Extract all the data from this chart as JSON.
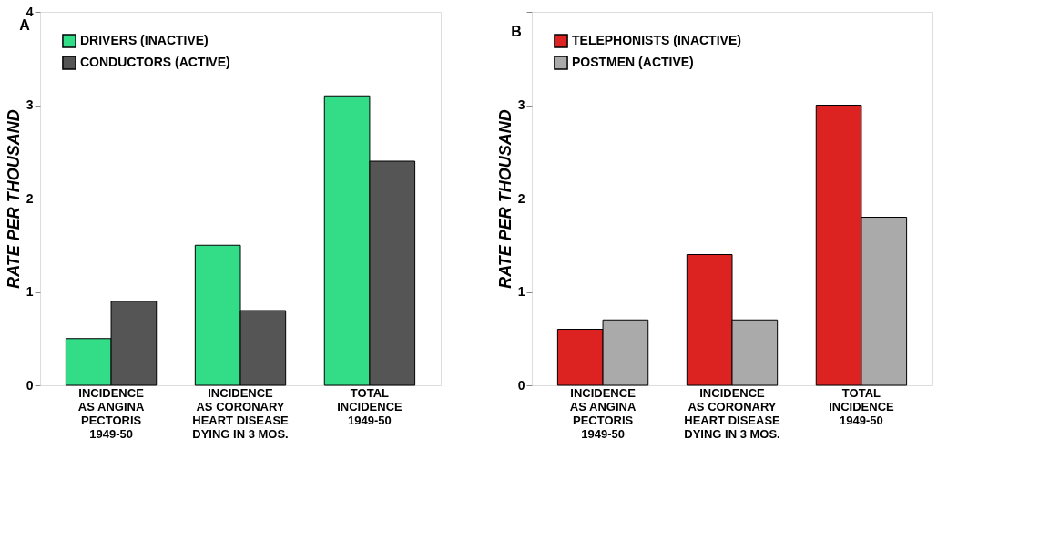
{
  "chart_data": [
    {
      "type": "bar",
      "title": "A",
      "ylabel": "RATE PER THOUSAND",
      "categories": [
        "INCIDENCE\nAS ANGINA\nPECTORIS\n1949-50",
        "INCIDENCE\nAS CORONARY\nHEART DISEASE\nDYING IN 3 MOS.",
        "TOTAL\nINCIDENCE\n1949-50"
      ],
      "series": [
        {
          "name": "DRIVERS (INACTIVE)",
          "color": "#33dd88",
          "values": [
            0.5,
            1.5,
            3.1
          ]
        },
        {
          "name": "CONDUCTORS (ACTIVE)",
          "color": "#555555",
          "values": [
            0.9,
            0.8,
            2.4
          ]
        }
      ],
      "ylim": [
        0,
        4
      ],
      "yticks": [
        0,
        1,
        2,
        3,
        4
      ],
      "grid": false,
      "legend": "top left"
    },
    {
      "type": "bar",
      "title": "B",
      "ylabel": "RATE PER THOUSAND",
      "categories": [
        "INCIDENCE\nAS ANGINA\nPECTORIS\n1949-50",
        "INCIDENCE\nAS CORONARY\nHEART DISEASE\nDYING IN 3 MOS.",
        "TOTAL\nINCIDENCE\n1949-50"
      ],
      "series": [
        {
          "name": "TELEPHONISTS (INACTIVE)",
          "color": "#dd2222",
          "values": [
            0.6,
            1.4,
            3.0
          ]
        },
        {
          "name": "POSTMEN (ACTIVE)",
          "color": "#aaaaaa",
          "values": [
            0.7,
            0.7,
            1.8
          ]
        }
      ],
      "ylim": [
        0,
        4
      ],
      "yticks": [
        0,
        1,
        2,
        3,
        {
          "value": 4,
          "label": null
        }
      ],
      "grid": false,
      "legend": "top left"
    }
  ]
}
